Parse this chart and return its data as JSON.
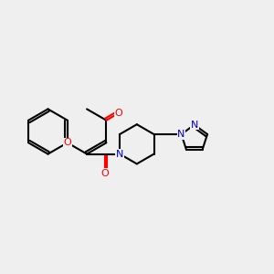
{
  "bg_color": "#efefef",
  "bond_color": "#000000",
  "o_color": "#ff0000",
  "n_color": "#0000cc",
  "lw": 1.5,
  "figsize": [
    3.0,
    3.0
  ],
  "dpi": 100,
  "xlim": [
    0,
    10
  ],
  "ylim": [
    0,
    10
  ]
}
